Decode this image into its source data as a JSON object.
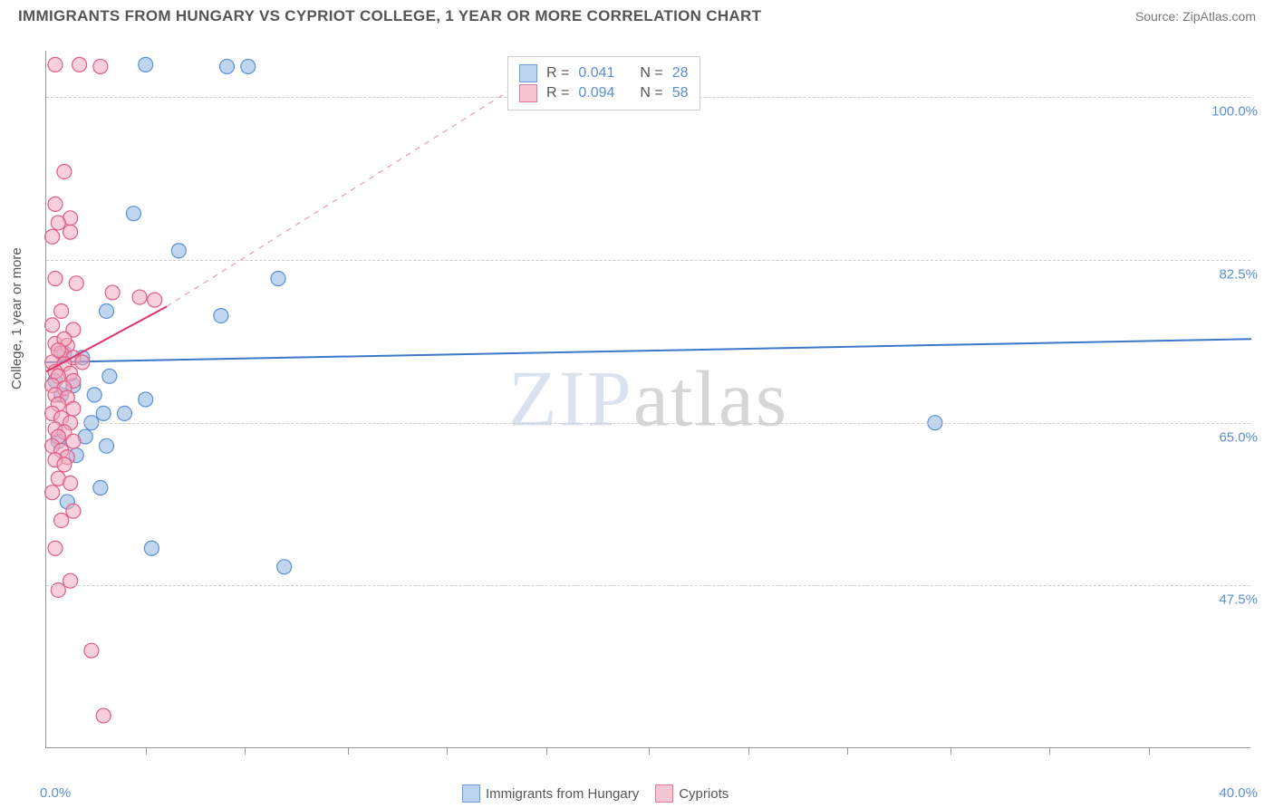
{
  "header": {
    "title": "IMMIGRANTS FROM HUNGARY VS CYPRIOT COLLEGE, 1 YEAR OR MORE CORRELATION CHART",
    "source_label": "Source:",
    "source_name": "ZipAtlas.com"
  },
  "chart": {
    "type": "scatter",
    "ylabel": "College, 1 year or more",
    "xlim": [
      0,
      40
    ],
    "ylim": [
      30,
      105
    ],
    "x_ticks": [
      0,
      40
    ],
    "x_tick_labels": [
      "0.0%",
      "40.0%"
    ],
    "x_minor_ticks": [
      3.3,
      6.6,
      10,
      13.3,
      16.6,
      20,
      23.3,
      26.6,
      30,
      33.3,
      36.6
    ],
    "y_ticks": [
      47.5,
      65.0,
      82.5,
      100.0
    ],
    "y_tick_labels": [
      "47.5%",
      "65.0%",
      "82.5%",
      "100.0%"
    ],
    "grid_color": "#cccccc",
    "axis_color": "#999999",
    "background_color": "#ffffff",
    "watermark": "ZIPatlas",
    "legend_top": {
      "rows": [
        {
          "swatch_fill": "#bcd4f0",
          "swatch_stroke": "#6a9ed8",
          "r_label": "R =",
          "r_value": "0.041",
          "n_label": "N =",
          "n_value": "28"
        },
        {
          "swatch_fill": "#f6c6d3",
          "swatch_stroke": "#e07a9a",
          "r_label": "R =",
          "r_value": "0.094",
          "n_label": "N =",
          "n_value": "58"
        }
      ]
    },
    "legend_bottom": {
      "items": [
        {
          "swatch_fill": "#bcd4f0",
          "swatch_stroke": "#6a9ed8",
          "label": "Immigrants from Hungary"
        },
        {
          "swatch_fill": "#f6c6d3",
          "swatch_stroke": "#e07a9a",
          "label": "Cypriots"
        }
      ]
    },
    "series": [
      {
        "name": "hungary",
        "marker_fill": "rgba(140,180,225,0.55)",
        "marker_stroke": "#5b8fd6",
        "marker_r": 8,
        "trend": {
          "x1": 0,
          "y1": 71.5,
          "x2": 40,
          "y2": 74.0,
          "stroke": "#3b78c9",
          "width": 2,
          "dash": "0"
        },
        "points": [
          [
            3.3,
            103.5
          ],
          [
            6.0,
            103.3
          ],
          [
            6.7,
            103.3
          ],
          [
            2.9,
            87.5
          ],
          [
            4.4,
            83.5
          ],
          [
            7.7,
            80.5
          ],
          [
            5.8,
            76.5
          ],
          [
            2.0,
            77.0
          ],
          [
            1.2,
            72.0
          ],
          [
            0.6,
            72.5
          ],
          [
            2.1,
            70.0
          ],
          [
            3.3,
            67.5
          ],
          [
            1.9,
            66.0
          ],
          [
            2.6,
            66.0
          ],
          [
            1.5,
            65.0
          ],
          [
            0.4,
            63.0
          ],
          [
            1.3,
            63.5
          ],
          [
            2.0,
            62.5
          ],
          [
            1.0,
            61.5
          ],
          [
            0.5,
            68.0
          ],
          [
            0.3,
            69.5
          ],
          [
            1.8,
            58.0
          ],
          [
            0.7,
            56.5
          ],
          [
            3.5,
            51.5
          ],
          [
            7.9,
            49.5
          ],
          [
            29.5,
            65.0
          ],
          [
            0.9,
            69.0
          ],
          [
            1.6,
            68.0
          ]
        ]
      },
      {
        "name": "cypriots",
        "marker_fill": "rgba(240,170,190,0.55)",
        "marker_stroke": "#e05a82",
        "marker_r": 8,
        "trend": {
          "x1": 0,
          "y1": 70.5,
          "x2": 4.0,
          "y2": 77.5,
          "stroke": "#e0316a",
          "width": 2,
          "dash": "0"
        },
        "trend_ext": {
          "x1": 4.0,
          "y1": 77.5,
          "x2": 16.5,
          "y2": 103.0,
          "stroke": "#e68aa8",
          "width": 1,
          "dash": "6,6"
        },
        "points": [
          [
            0.3,
            103.5
          ],
          [
            1.1,
            103.5
          ],
          [
            1.8,
            103.3
          ],
          [
            0.6,
            92.0
          ],
          [
            0.3,
            88.5
          ],
          [
            0.8,
            87.0
          ],
          [
            0.4,
            86.5
          ],
          [
            0.2,
            85.0
          ],
          [
            0.8,
            85.5
          ],
          [
            0.3,
            80.5
          ],
          [
            1.0,
            80.0
          ],
          [
            2.2,
            79.0
          ],
          [
            3.1,
            78.5
          ],
          [
            3.6,
            78.2
          ],
          [
            0.5,
            77.0
          ],
          [
            0.2,
            75.5
          ],
          [
            0.9,
            75.0
          ],
          [
            0.3,
            73.5
          ],
          [
            0.7,
            73.3
          ],
          [
            0.5,
            72.5
          ],
          [
            0.9,
            72.0
          ],
          [
            0.2,
            71.5
          ],
          [
            0.6,
            71.3
          ],
          [
            0.3,
            70.5
          ],
          [
            0.8,
            70.3
          ],
          [
            0.4,
            70.0
          ],
          [
            0.9,
            69.5
          ],
          [
            0.2,
            69.0
          ],
          [
            0.6,
            68.7
          ],
          [
            0.3,
            68.0
          ],
          [
            0.7,
            67.7
          ],
          [
            0.4,
            67.0
          ],
          [
            0.9,
            66.5
          ],
          [
            0.2,
            66.0
          ],
          [
            0.5,
            65.5
          ],
          [
            0.8,
            65.0
          ],
          [
            0.3,
            64.3
          ],
          [
            0.6,
            64.0
          ],
          [
            0.4,
            63.5
          ],
          [
            0.9,
            63.0
          ],
          [
            0.2,
            62.5
          ],
          [
            0.5,
            62.0
          ],
          [
            0.7,
            61.3
          ],
          [
            0.3,
            61.0
          ],
          [
            0.6,
            60.5
          ],
          [
            0.4,
            59.0
          ],
          [
            0.8,
            58.5
          ],
          [
            0.2,
            57.5
          ],
          [
            0.9,
            55.5
          ],
          [
            0.5,
            54.5
          ],
          [
            0.3,
            51.5
          ],
          [
            0.8,
            48.0
          ],
          [
            0.4,
            47.0
          ],
          [
            1.5,
            40.5
          ],
          [
            1.9,
            33.5
          ],
          [
            0.6,
            74.0
          ],
          [
            1.2,
            71.5
          ],
          [
            0.4,
            72.8
          ]
        ]
      }
    ]
  }
}
